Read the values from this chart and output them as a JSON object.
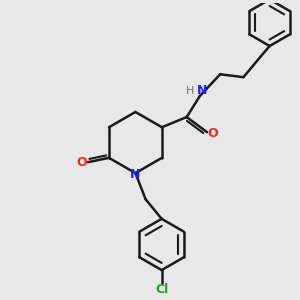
{
  "bg_color": "#e8e8e8",
  "bond_color": "#1a1a1a",
  "bond_width": 1.8,
  "N_color": "#2020ff",
  "O_color": "#ff2020",
  "Cl_color": "#20a020",
  "H_color": "#707070",
  "font_size": 9,
  "fig_width": 3.0,
  "fig_height": 3.0,
  "dpi": 100,
  "xlim": [
    0,
    10
  ],
  "ylim": [
    0,
    10
  ]
}
